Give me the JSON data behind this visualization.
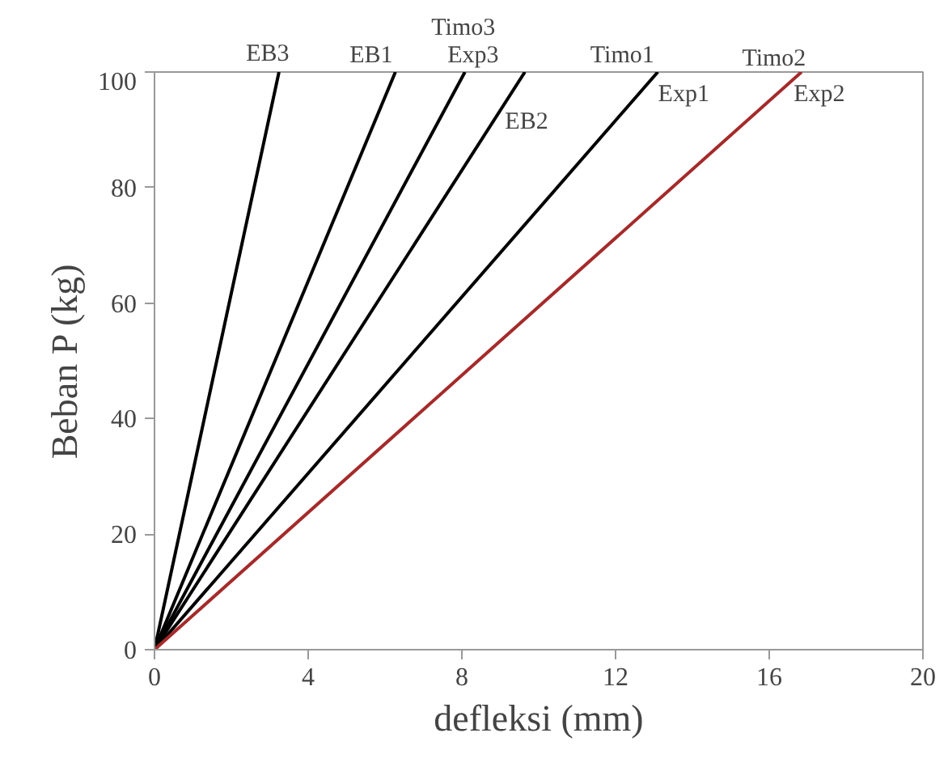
{
  "chart_data": {
    "type": "line",
    "xlabel": "defleksi (mm)",
    "ylabel": "Beban P (kg)",
    "xlim": [
      0,
      20
    ],
    "ylim": [
      0,
      100
    ],
    "xticks": [
      0,
      4,
      8,
      12,
      16,
      20
    ],
    "yticks": [
      0,
      20,
      40,
      60,
      80,
      100
    ],
    "grid": false,
    "marker": "none",
    "line_style": "solid",
    "series": [
      {
        "color": "#000000",
        "x": [
          0,
          3.24
        ],
        "values": [
          0,
          100
        ]
      },
      {
        "color": "#000000",
        "x": [
          0,
          6.27
        ],
        "values": [
          0,
          100
        ]
      },
      {
        "color": "#000000",
        "x": [
          0,
          8.08
        ],
        "values": [
          0,
          100
        ]
      },
      {
        "color": "#000000",
        "x": [
          0,
          9.64
        ],
        "values": [
          0,
          100
        ]
      },
      {
        "color": "#000000",
        "x": [
          0,
          13.1
        ],
        "values": [
          0,
          100
        ]
      },
      {
        "color": "#a52a2a",
        "x": [
          0,
          16.84
        ],
        "values": [
          0,
          100
        ]
      }
    ],
    "annotations": [
      {
        "text": "EB3",
        "x": 3.24,
        "y": 100
      },
      {
        "text": "EB1",
        "x": 6.27,
        "y": 100
      },
      {
        "text": "Timo3",
        "x": 8.08,
        "y": 100
      },
      {
        "text": "Exp3",
        "x": 8.08,
        "y": 100
      },
      {
        "text": "EB2",
        "x": 8.8,
        "y": 91.3
      },
      {
        "text": "Timo1",
        "x": 13.1,
        "y": 100
      },
      {
        "text": "Exp1",
        "x": 13.1,
        "y": 100
      },
      {
        "text": "Timo2",
        "x": 16.84,
        "y": 100
      },
      {
        "text": "Exp2",
        "x": 16.84,
        "y": 100
      }
    ]
  }
}
